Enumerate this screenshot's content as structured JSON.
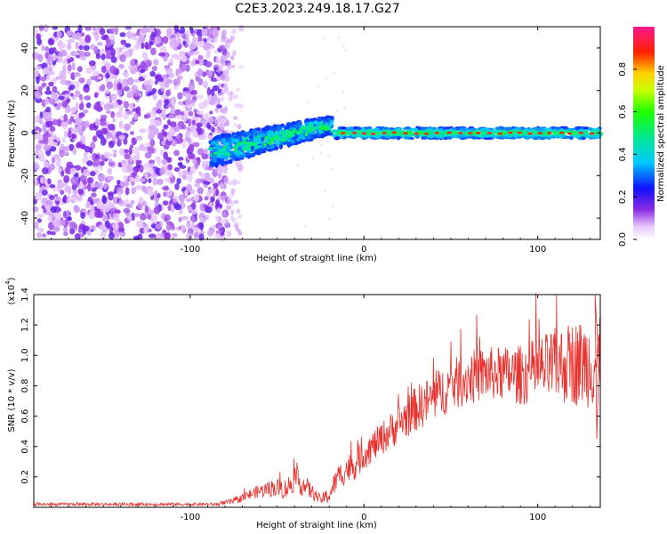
{
  "title": "C2E3.2023.249.18.17.G27",
  "colors": {
    "line": "#e8302c",
    "axis": "#000000"
  },
  "chart_data": [
    {
      "type": "heatmap",
      "xlabel": "Height of straight line (km)",
      "ylabel": "Frequency (Hz)",
      "xlim": [
        -190,
        136
      ],
      "ylim": [
        -50,
        50
      ],
      "x_ticks": [
        -100,
        0,
        100
      ],
      "y_ticks": [
        -40,
        -20,
        0,
        20,
        40
      ],
      "colorbar": {
        "label": "Normalized spectral amplitude",
        "range": [
          0,
          1
        ],
        "ticks": [
          "0.0",
          "0.2",
          "0.4",
          "0.6",
          "0.8"
        ],
        "colormap": "rainbow (white-purple-blue-cyan-green-yellow-red-magenta)"
      },
      "regions": [
        {
          "x": [
            -190,
            -78
          ],
          "description": "scattered noise"
        },
        {
          "x": [
            -88,
            -18
          ],
          "frequency_hz": [
            -12,
            8
          ],
          "trend": "rising"
        },
        {
          "x": [
            -18,
            136
          ],
          "frequency_hz": 0,
          "peak_amplitude": 0.9
        }
      ]
    },
    {
      "type": "line",
      "xlabel": "Height of straight line (km)",
      "ylabel": "SNR (10 * v/v)",
      "y_multiplier": "(x10",
      "y_multiplier_exp": "4",
      "y_multiplier_close": ")",
      "xlim": [
        -190,
        136
      ],
      "ylim": [
        0,
        1.4
      ],
      "x_ticks": [
        -100,
        0,
        100
      ],
      "y_ticks": [
        "0.2",
        "0.4",
        "0.6",
        "0.8",
        "1.0",
        "1.2",
        "1.4"
      ],
      "grid": false,
      "envelope": {
        "x": [
          -190,
          -85,
          -75,
          -62,
          -52,
          -45,
          -40,
          -35,
          -30,
          -25,
          -20,
          -15,
          -10,
          -5,
          0,
          10,
          20,
          30,
          40,
          50,
          60,
          70,
          80,
          90,
          100,
          110,
          120,
          130,
          136
        ],
        "mean": [
          0.02,
          0.02,
          0.04,
          0.1,
          0.13,
          0.12,
          0.18,
          0.15,
          0.1,
          0.05,
          0.08,
          0.2,
          0.25,
          0.28,
          0.35,
          0.45,
          0.55,
          0.65,
          0.72,
          0.8,
          0.85,
          0.88,
          0.88,
          0.87,
          0.9,
          0.93,
          0.95,
          0.95,
          0.95
        ],
        "amplitude": [
          0.01,
          0.01,
          0.02,
          0.04,
          0.06,
          0.07,
          0.08,
          0.08,
          0.05,
          0.03,
          0.06,
          0.08,
          0.1,
          0.1,
          0.1,
          0.11,
          0.13,
          0.15,
          0.16,
          0.17,
          0.18,
          0.18,
          0.18,
          0.2,
          0.22,
          0.25,
          0.28,
          0.3,
          0.3
        ]
      }
    }
  ]
}
